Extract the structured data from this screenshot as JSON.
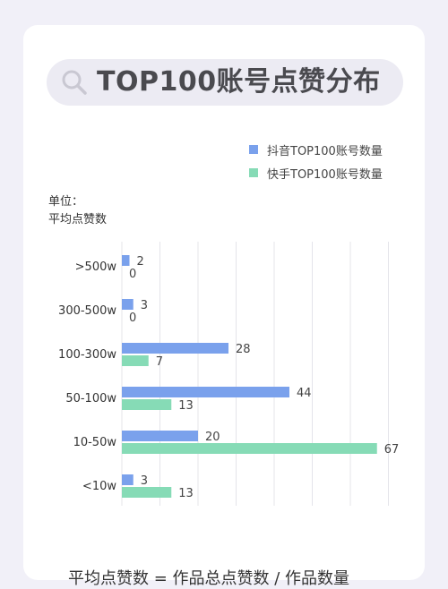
{
  "title": "TOP100账号点赞分布",
  "icons": {
    "search": "search-icon"
  },
  "unit_line1": "单位：",
  "unit_line2": "平均点赞数",
  "footer": "平均点赞数 = 作品总点赞数 / 作品数量",
  "colors": {
    "douyin": "#7aa1ec",
    "kuaishou": "#86dbb6",
    "grid": "#e4e4ea",
    "pill": "#ecebf3"
  },
  "chart_data": {
    "type": "bar",
    "orientation": "horizontal",
    "categories": [
      ">500w",
      "300-500w",
      "100-300w",
      "50-100w",
      "10-50w",
      "<10w"
    ],
    "series": [
      {
        "name": "抖音TOP100账号数量",
        "values": [
          2,
          3,
          28,
          44,
          20,
          3
        ]
      },
      {
        "name": "快手TOP100账号数量",
        "values": [
          0,
          0,
          7,
          13,
          67,
          13
        ]
      }
    ],
    "xlim": [
      0,
      70
    ],
    "grid": true,
    "legend": "top-right"
  }
}
